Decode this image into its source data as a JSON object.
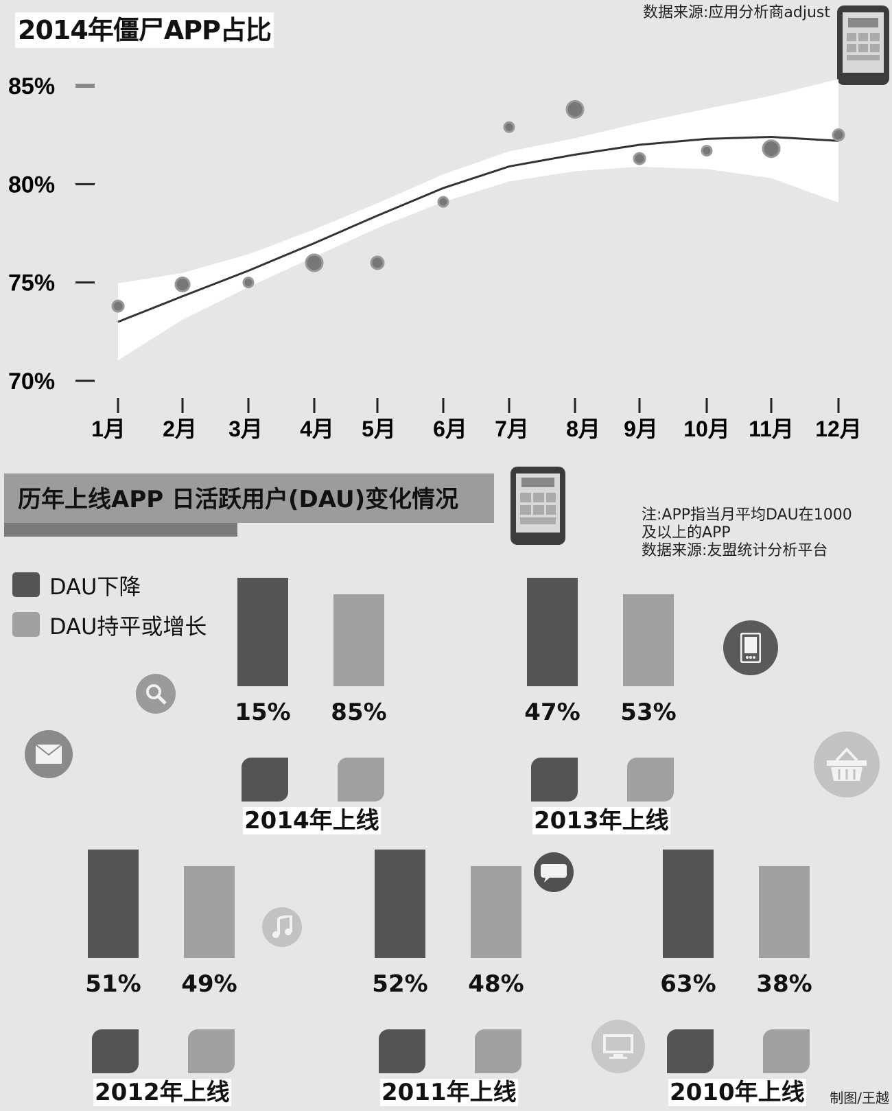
{
  "chart1": {
    "title": "2014年僵尸APP占比",
    "source": "数据来源:应用分析商adjust"
  },
  "chart2": {
    "title": "历年上线APP 日活跃用户(DAU)变化情况",
    "note_line1": "注:APP指当月平均DAU在1000",
    "note_line2": "及以上的APP",
    "note_line3": "数据来源:友盟统计分析平台",
    "credit": "制图/王越"
  },
  "colors": {
    "dark": "#545454",
    "light": "#a0a0a0",
    "background": "#e6e6e6",
    "band": "#ffffff"
  },
  "icons": [
    "phone-icon",
    "search-icon",
    "mail-icon",
    "mobile-icon",
    "basket-icon",
    "music-icon",
    "chat-icon",
    "monitor-icon"
  ],
  "chart_data": [
    {
      "type": "scatter",
      "title": "2014年僵尸APP占比",
      "categories": [
        "1月",
        "2月",
        "3月",
        "4月",
        "5月",
        "6月",
        "7月",
        "8月",
        "9月",
        "10月",
        "11月",
        "12月"
      ],
      "y_ticks": [
        "85%",
        "80%",
        "75%",
        "70%"
      ],
      "ylim": [
        70,
        85
      ],
      "series": [
        {
          "values": [
            73.8,
            74.9,
            75.0,
            76.0,
            76.0,
            79.1,
            82.9,
            83.8,
            81.3,
            81.7,
            81.8,
            82.5
          ]
        }
      ],
      "trend": [
        73.0,
        74.3,
        75.6,
        77.0,
        78.4,
        79.8,
        80.9,
        81.5,
        82.0,
        82.3,
        82.4,
        82.2
      ],
      "trend_band": true,
      "grid": false
    },
    {
      "type": "bar",
      "title": "历年上线APP 日活跃用户(DAU)变化情况",
      "legend": [
        "DAU下降",
        "DAU持平或增长"
      ],
      "groups": [
        {
          "label": "2014年上线",
          "down": "15%",
          "flat_or_up": "85%"
        },
        {
          "label": "2013年上线",
          "down": "47%",
          "flat_or_up": "53%"
        },
        {
          "label": "2012年上线",
          "down": "51%",
          "flat_or_up": "49%"
        },
        {
          "label": "2011年上线",
          "down": "52%",
          "flat_or_up": "48%"
        },
        {
          "label": "2010年上线",
          "down": "63%",
          "flat_or_up": "38%"
        }
      ]
    }
  ]
}
